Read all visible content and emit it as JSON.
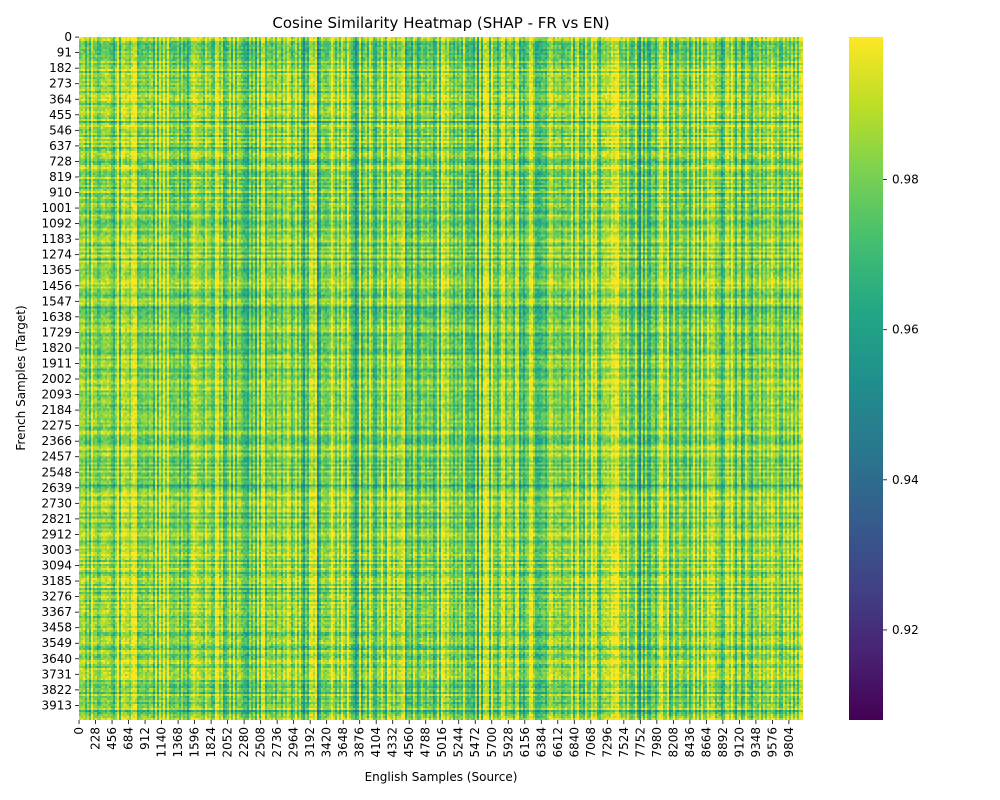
{
  "chart_data": {
    "type": "heatmap",
    "title": "Cosine Similarity Heatmap (SHAP - FR vs EN)",
    "xlabel": "English Samples (Source)",
    "ylabel": "French Samples (Target)",
    "x_tick_labels": [
      "0",
      "228",
      "456",
      "684",
      "912",
      "1140",
      "1368",
      "1596",
      "1824",
      "2052",
      "2280",
      "2508",
      "2736",
      "2964",
      "3192",
      "3420",
      "3648",
      "3876",
      "4104",
      "4332",
      "4560",
      "4788",
      "5016",
      "5244",
      "5472",
      "5700",
      "5928",
      "6156",
      "6384",
      "6612",
      "6840",
      "7068",
      "7296",
      "7524",
      "7752",
      "7980",
      "8208",
      "8436",
      "8664",
      "8892",
      "9120",
      "9348",
      "9576",
      "9804"
    ],
    "y_tick_labels": [
      "0",
      "91",
      "182",
      "273",
      "364",
      "455",
      "546",
      "637",
      "728",
      "819",
      "910",
      "1001",
      "1092",
      "1183",
      "1274",
      "1365",
      "1456",
      "1547",
      "1638",
      "1729",
      "1820",
      "1911",
      "2002",
      "2093",
      "2184",
      "2275",
      "2366",
      "2457",
      "2548",
      "2639",
      "2730",
      "2821",
      "2912",
      "3003",
      "3094",
      "3185",
      "3276",
      "3367",
      "3458",
      "3549",
      "3640",
      "3731",
      "3822",
      "3913"
    ],
    "x_tick_step": 228,
    "y_tick_step": 91,
    "n_source": 9999,
    "n_target": 3999,
    "colormap": "viridis",
    "value_range": [
      0.908,
      0.999
    ],
    "cell_value_center": 0.982,
    "colorbar": {
      "ticks": [
        0.92,
        0.94,
        0.96,
        0.98
      ],
      "tick_labels": [
        "0.92",
        "0.94",
        "0.96",
        "0.98"
      ]
    }
  }
}
